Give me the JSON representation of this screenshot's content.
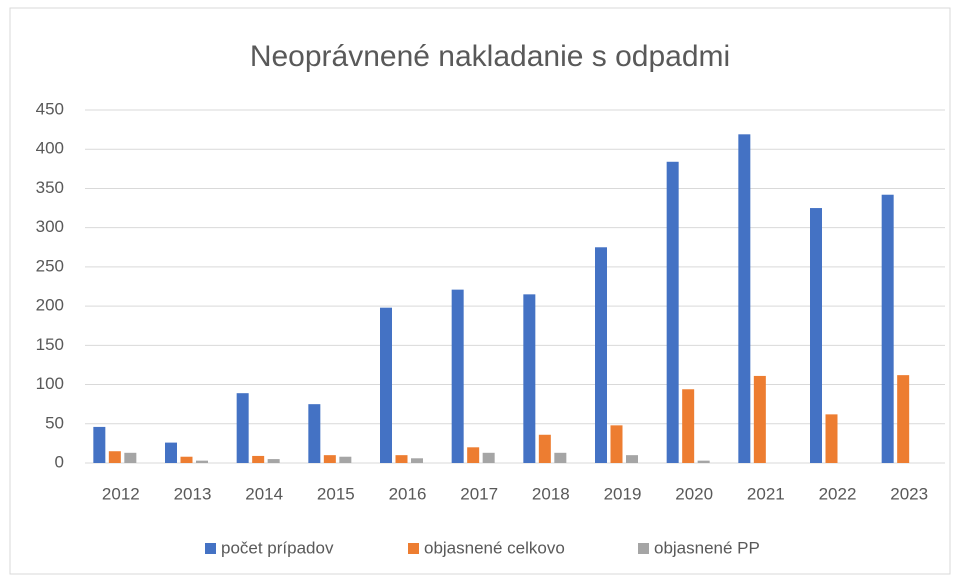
{
  "chart_data": {
    "type": "bar",
    "title": "Neoprávnené nakladanie s odpadmi",
    "categories": [
      "2012",
      "2013",
      "2014",
      "2015",
      "2016",
      "2017",
      "2018",
      "2019",
      "2020",
      "2021",
      "2022",
      "2023"
    ],
    "series": [
      {
        "name": "počet prípadov",
        "color": "#4472c4",
        "values": [
          46,
          26,
          89,
          75,
          198,
          221,
          215,
          275,
          384,
          419,
          325,
          342
        ]
      },
      {
        "name": "objasnené celkovo",
        "color": "#ed7d31",
        "values": [
          15,
          8,
          9,
          10,
          10,
          20,
          36,
          48,
          94,
          111,
          62,
          112
        ]
      },
      {
        "name": "objasnené PP",
        "color": "#a5a5a5",
        "values": [
          13,
          3,
          5,
          8,
          6,
          13,
          13,
          10,
          3,
          0,
          0,
          0
        ]
      }
    ],
    "ylim": [
      0,
      450
    ],
    "yticks": [
      0,
      50,
      100,
      150,
      200,
      250,
      300,
      350,
      400,
      450
    ],
    "grid": true,
    "legend": "bottom"
  }
}
